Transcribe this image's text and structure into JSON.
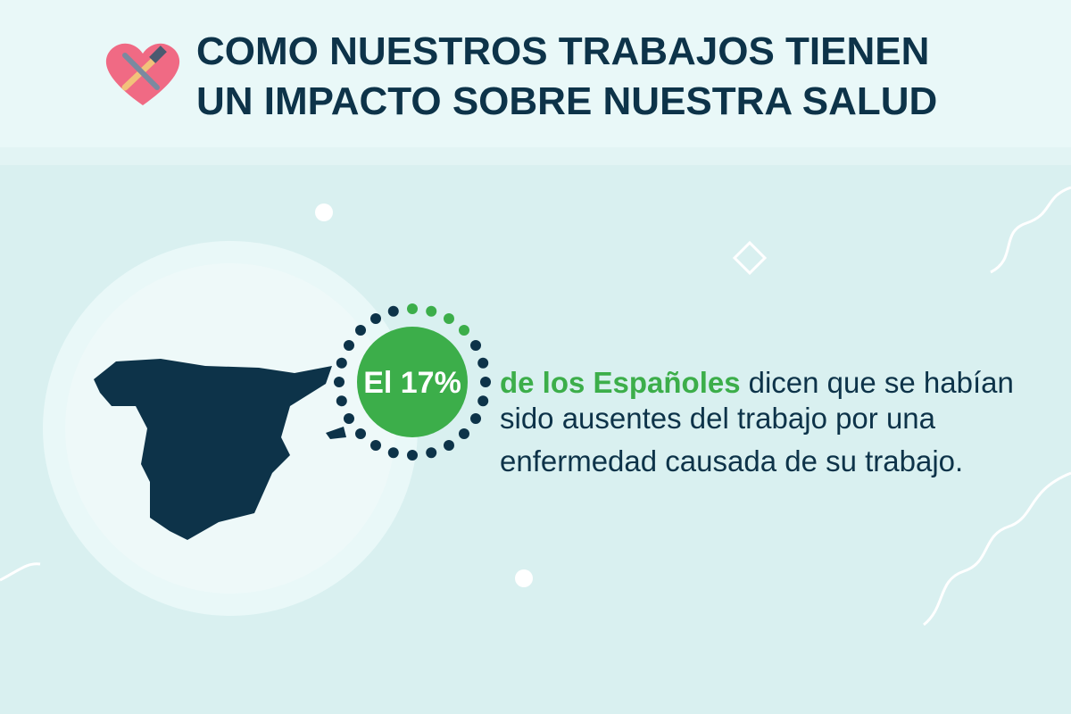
{
  "header": {
    "title_lines": [
      "COMO NUESTROS TRABAJOS TIENEN",
      "UN IMPACTO SOBRE NUESTRA SALUD"
    ]
  },
  "stat": {
    "label": "El 17%",
    "highlight": "de los Españoles",
    "text_lines": [
      "dicen que se habían",
      "sido ausentes del trabajo por una",
      "enfermedad causada de su trabajo."
    ]
  }
}
